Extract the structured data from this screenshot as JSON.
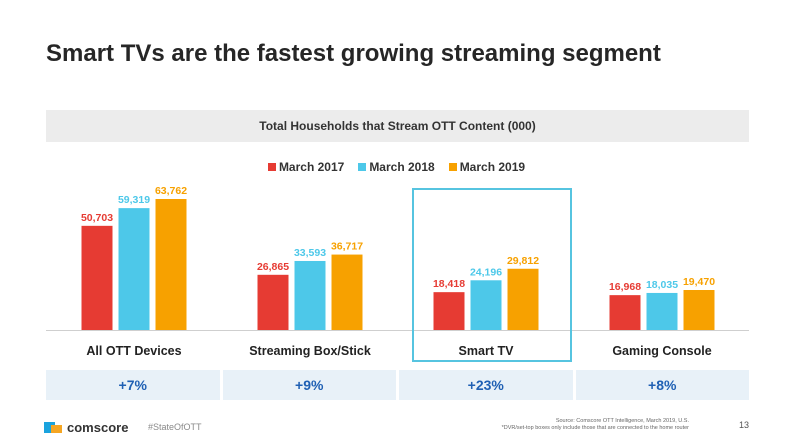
{
  "title": "Smart TVs are the fastest growing streaming segment",
  "chart_data": {
    "type": "bar",
    "title": "Total Households that Stream OTT Content (000)",
    "categories": [
      "All OTT Devices",
      "Streaming Box/Stick",
      "Smart TV",
      "Gaming Console"
    ],
    "series": [
      {
        "name": "March 2017",
        "color": "#e63b33",
        "values": [
          50703,
          26865,
          18418,
          16968
        ],
        "labels": [
          "50,703",
          "26,865",
          "18,418",
          "16,968"
        ]
      },
      {
        "name": "March 2018",
        "color": "#4dc8e9",
        "values": [
          59319,
          33593,
          24196,
          18035
        ],
        "labels": [
          "59,319",
          "33,593",
          "24,196",
          "18,035"
        ]
      },
      {
        "name": "March 2019",
        "color": "#f7a100",
        "values": [
          63762,
          36717,
          29812,
          19470
        ],
        "labels": [
          "63,762",
          "36,717",
          "29,812",
          "19,470"
        ]
      }
    ],
    "growth": [
      "+7%",
      "+9%",
      "+23%",
      "+8%"
    ],
    "highlighted_category": "Smart TV",
    "legend_position": "top-center",
    "grid": false
  },
  "footer": {
    "brand": "comscore",
    "hashtag": "#StateOfOTT",
    "source_line1": "Source: Comscore OTT Intelligence, March 2019, U.S.",
    "source_line2": "*DVR/set-top boxes only include those that are connected to the home router",
    "page_number": "13"
  }
}
